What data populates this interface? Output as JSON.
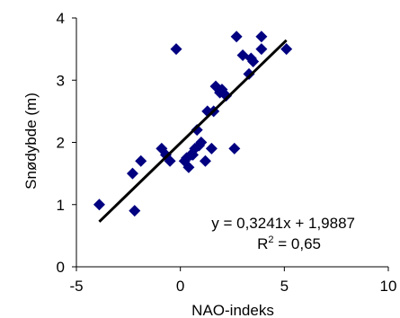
{
  "chart_data": {
    "type": "scatter",
    "title": "",
    "xlabel": "NAO-indeks",
    "ylabel": "Snødybde (m)",
    "xlim": [
      -5,
      10
    ],
    "ylim": [
      0,
      4
    ],
    "xticks": [
      "-5",
      "0",
      "5",
      "10"
    ],
    "yticks": [
      "0",
      "1",
      "2",
      "3",
      "4"
    ],
    "grid": false,
    "legend": "none",
    "marker_color": "#000080",
    "line_color": "#000000",
    "series": [
      {
        "points": [
          [
            -3.9,
            1.0
          ],
          [
            -2.3,
            1.5
          ],
          [
            -2.2,
            0.9
          ],
          [
            -1.9,
            1.7
          ],
          [
            -0.9,
            1.9
          ],
          [
            -0.7,
            1.8
          ],
          [
            -0.5,
            1.7
          ],
          [
            -0.2,
            3.5
          ],
          [
            0.2,
            1.7
          ],
          [
            0.3,
            1.75
          ],
          [
            0.4,
            1.6
          ],
          [
            0.5,
            1.8
          ],
          [
            0.6,
            1.8
          ],
          [
            0.7,
            1.9
          ],
          [
            0.8,
            2.2
          ],
          [
            0.9,
            1.95
          ],
          [
            1.0,
            2.0
          ],
          [
            1.2,
            1.7
          ],
          [
            1.3,
            2.5
          ],
          [
            1.5,
            1.9
          ],
          [
            1.6,
            2.5
          ],
          [
            1.7,
            2.9
          ],
          [
            1.9,
            2.8
          ],
          [
            2.0,
            2.85
          ],
          [
            2.2,
            2.75
          ],
          [
            2.6,
            1.9
          ],
          [
            2.7,
            3.7
          ],
          [
            3.0,
            3.4
          ],
          [
            3.3,
            3.1
          ],
          [
            3.4,
            3.35
          ],
          [
            3.5,
            3.3
          ],
          [
            3.9,
            3.7
          ],
          [
            3.9,
            3.5
          ],
          [
            5.1,
            3.5
          ]
        ]
      }
    ],
    "trendline": {
      "slope": 0.3241,
      "intercept": 1.9887,
      "x_range": [
        -3.9,
        5.1
      ]
    },
    "annotations": {
      "equation": "y = 0,3241x + 1,9887",
      "r2_prefix": "R",
      "r2_sup": "2",
      "r2_suffix": " = 0,65"
    }
  }
}
